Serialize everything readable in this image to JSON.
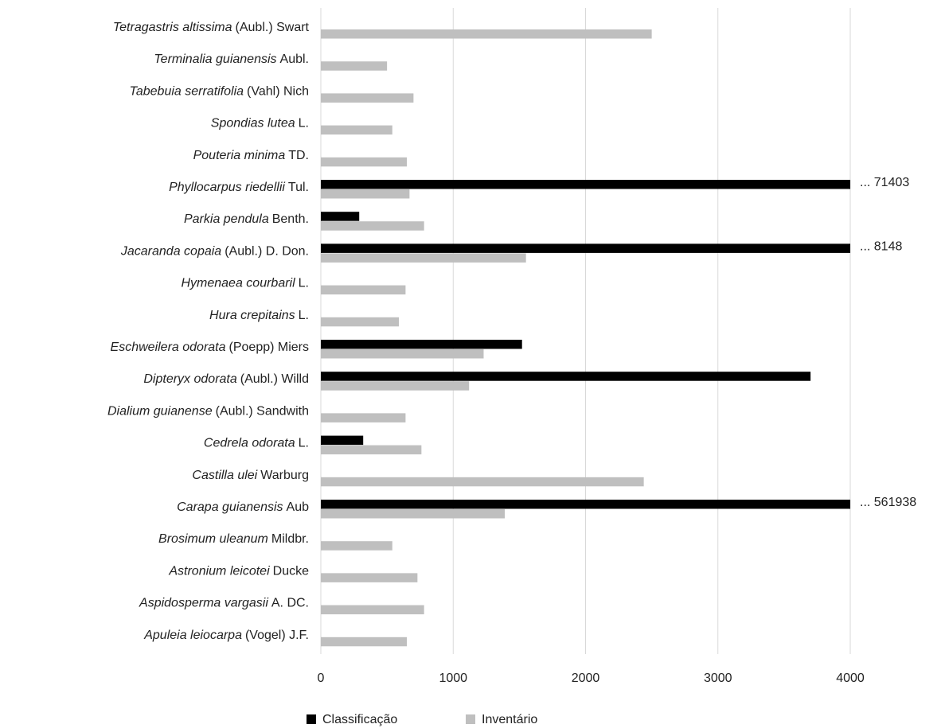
{
  "chart_data": {
    "type": "barh",
    "categories": [
      {
        "species": "Tetragastris altissima",
        "author": "(Aubl.) Swart"
      },
      {
        "species": "Terminalia guianensis",
        "author": "Aubl."
      },
      {
        "species": "Tabebuia serratifolia",
        "author": "(Vahl) Nich"
      },
      {
        "species": "Spondias lutea",
        "author": "L."
      },
      {
        "species": "Pouteria minima",
        "author": "TD."
      },
      {
        "species": "Phyllocarpus riedellii",
        "author": "Tul."
      },
      {
        "species": "Parkia pendula",
        "author": "Benth."
      },
      {
        "species": "Jacaranda copaia",
        "author": "(Aubl.) D. Don."
      },
      {
        "species": "Hymenaea courbaril",
        "author": "L."
      },
      {
        "species": "Hura crepitains",
        "author": "L."
      },
      {
        "species": "Eschweilera odorata",
        "author": "(Poepp) Miers"
      },
      {
        "species": "Dipteryx odorata",
        "author": "(Aubl.) Willd"
      },
      {
        "species": "Dialium guianense",
        "author": "(Aubl.) Sandwith"
      },
      {
        "species": "Cedrela odorata",
        "author": "L."
      },
      {
        "species": "Castilla ulei",
        "author": "Warburg"
      },
      {
        "species": "Carapa guianensis",
        "author": "Aub"
      },
      {
        "species": "Brosimum uleanum",
        "author": "Mildbr."
      },
      {
        "species": "Astronium leicotei",
        "author": "Ducke"
      },
      {
        "species": "Aspidosperma vargasii",
        "author": "A. DC."
      },
      {
        "species": "Apuleia leiocarpa",
        "author": "(Vogel) J.F."
      }
    ],
    "series": [
      {
        "name": "Classificação",
        "color": "#000000",
        "values": [
          null,
          null,
          null,
          null,
          null,
          71403,
          290,
          8148,
          null,
          null,
          1520,
          3700,
          null,
          320,
          null,
          561938,
          null,
          null,
          null,
          null
        ],
        "value_labels": [
          null,
          null,
          null,
          null,
          null,
          "... 71403",
          null,
          "... 8148",
          null,
          null,
          null,
          null,
          null,
          null,
          null,
          "... 561938",
          null,
          null,
          null,
          null
        ]
      },
      {
        "name": "Inventário",
        "color": "#bfbfbf",
        "values": [
          2500,
          500,
          700,
          540,
          650,
          670,
          780,
          1550,
          640,
          590,
          1230,
          1120,
          640,
          760,
          2440,
          1390,
          540,
          730,
          780,
          650
        ]
      }
    ],
    "xlim": [
      0,
      4000
    ],
    "xticks": [
      0,
      1000,
      2000,
      3000,
      4000
    ],
    "grid": true
  }
}
